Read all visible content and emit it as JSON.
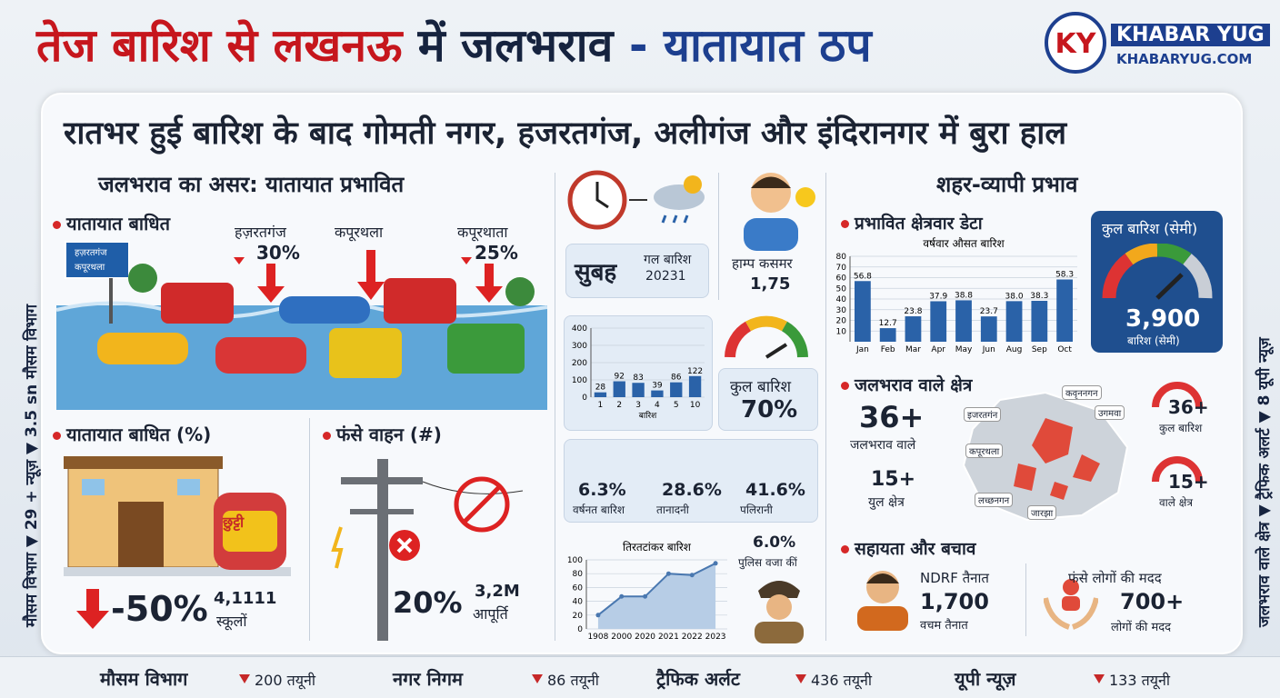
{
  "header": {
    "title_part1": "तेज बारिश से लखनऊ",
    "title_part2": "में जलभराव",
    "title_part3": "- यातायात ठप",
    "logo_initials": "KY",
    "logo_name": "KHABAR YUG",
    "logo_site": "KHABARYUG.COM"
  },
  "side": {
    "left": "मौसम विभाग ▼ 29 + न्यूज़ ▼ 3.5 sn मौसम विभाग",
    "right": "जलभराव वाले क्षेत्र ▼ ट्रैफिक अलर्ट ▼ 8 यूपी न्यूज़"
  },
  "subtitle": "रातभर हुई बारिश के बाद गोमती नगर, हजरतगंज, अलीगंज और इंदिरानगर में बुरा हाल",
  "left": {
    "heading": "जलभराव का असर: यातायात प्रभावित",
    "traffic_label": "यातायात बाधित",
    "sign": [
      "हज़रतगंज",
      "कपूरथला"
    ],
    "callouts": [
      {
        "place": "हज़रतगंज",
        "value": "30%"
      },
      {
        "place": "कपूरथला"
      },
      {
        "place": "कपूरथाता",
        "value": "25%"
      }
    ],
    "traffic_pct_label": "यातायात बाधित (%)",
    "school_sign": "छुट्टी",
    "school_value": "-50%",
    "school_count": "4,1111",
    "school_count_label": "स्कूलों",
    "vehicles_label": "फंसे वाहन (#)",
    "vehicles_value": "20%",
    "supply_value": "3,2M",
    "supply_label": "आपूर्ति"
  },
  "middle": {
    "time_label": "सुबह",
    "rain_label": "गल बारिश",
    "rain_year": "20231",
    "person_label": "हाम्प कसमर",
    "person_value": "1,75",
    "gauge_label": "कुल बारिश",
    "gauge_value": "70%",
    "stats": [
      {
        "value": "6.3%",
        "label": "वर्षनत बारिश"
      },
      {
        "value": "28.6%",
        "label": "तानादनी"
      },
      {
        "value": "41.6%",
        "label": "पलिरानी"
      }
    ],
    "police_value": "6.0%",
    "police_label": "पुलिस वजा कीं"
  },
  "charts": {
    "rain_bars": {
      "type": "bar",
      "x_label": "बारिश",
      "categories": [
        "1",
        "2",
        "3",
        "4",
        "5",
        "10"
      ],
      "values": [
        28,
        92,
        83,
        39,
        86,
        122
      ],
      "color": "#2a62a8",
      "ylim": [
        0,
        400
      ],
      "yticks": [
        0,
        100,
        200,
        300,
        400
      ]
    },
    "monthly": {
      "type": "bar",
      "title": "वर्षवार औसत बारिश",
      "categories": [
        "Jan",
        "Feb",
        "Mar",
        "Apr",
        "May",
        "Jun",
        "Aug",
        "Sep",
        "Oct"
      ],
      "values": [
        56.8,
        12.7,
        23.8,
        37.9,
        38.8,
        23.7,
        38.0,
        38.3,
        58.3
      ],
      "value_labels": [
        "56.8",
        "12.7",
        "23.8",
        "37.9",
        "38.8",
        "23.7",
        "38.0",
        "38.3",
        "58.3"
      ],
      "color": "#2a62a8",
      "ylim": [
        0,
        80
      ],
      "yticks": [
        10,
        20,
        30,
        40,
        50,
        60,
        70,
        80
      ]
    },
    "trend": {
      "type": "line",
      "title": "तिरतटांकर बारिश",
      "categories": [
        "1908",
        "2000",
        "2020",
        "2021",
        "2022",
        "2023"
      ],
      "values": [
        20,
        47,
        47,
        80,
        78,
        95
      ],
      "color": "#4a78b0",
      "ylim": [
        0,
        100
      ],
      "yticks": [
        0,
        20,
        40,
        60,
        80,
        100
      ]
    }
  },
  "right": {
    "heading": "शहर-व्यापी प्रभाव",
    "area_label": "प्रभावित क्षेत्रवार डेटा",
    "total_title": "कुल बारिश (सेमी)",
    "total_value": "3,900",
    "total_unit": "बारिश (सेमी)",
    "flood_label": "जलभराव वाले क्षेत्र",
    "flood_value": "36+",
    "flood_value_label": "जलभराव वाले",
    "zone_value": "15+",
    "zone_label": "युल क्षेत्र",
    "map_labels": [
      "कवृननगन",
      "इजरतगंन",
      "उगमवा",
      "कपूरथला",
      "लच्छनगन",
      "जारझा"
    ],
    "gauges": [
      {
        "value": "36+",
        "label": "कुल बारिश"
      },
      {
        "value": "15+",
        "label": "वाले क्षेत्र"
      }
    ],
    "help_label": "सहायता और बचाव",
    "ndrf_title": "NDRF तैनात",
    "ndrf_value": "1,700",
    "ndrf_label": "वचम तैनात",
    "rescue_title": "फंसे लोगों की मदद",
    "rescue_value": "700+",
    "rescue_label": "लोगों की मदद"
  },
  "ticker": [
    {
      "name": "मौसम विभाग",
      "count": "200 तयूनी"
    },
    {
      "name": "नगर निगम",
      "count": "86 तयूनी"
    },
    {
      "name": "ट्रैफिक अर्लट",
      "count": "436 तयूनी"
    },
    {
      "name": "यूपी न्यूज़",
      "count": "133 तयूनी"
    }
  ]
}
